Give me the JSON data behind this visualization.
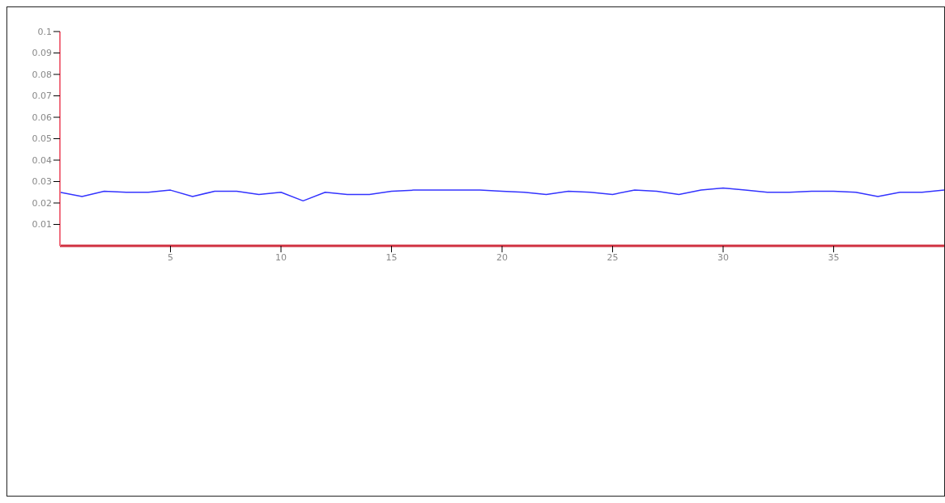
{
  "chart_data": {
    "type": "line",
    "x": [
      0,
      1,
      2,
      3,
      4,
      5,
      6,
      7,
      8,
      9,
      10,
      11,
      12,
      13,
      14,
      15,
      16,
      17,
      18,
      19,
      20,
      21,
      22,
      23,
      24,
      25,
      26,
      27,
      28,
      29,
      30,
      31,
      32,
      33,
      34,
      35,
      36,
      37,
      38,
      39,
      40
    ],
    "values": [
      0.025,
      0.023,
      0.0255,
      0.025,
      0.025,
      0.026,
      0.023,
      0.0255,
      0.0255,
      0.024,
      0.025,
      0.021,
      0.025,
      0.024,
      0.024,
      0.0255,
      0.026,
      0.026,
      0.026,
      0.026,
      0.0255,
      0.025,
      0.024,
      0.0255,
      0.025,
      0.024,
      0.026,
      0.0255,
      0.024,
      0.026,
      0.027,
      0.026,
      0.025,
      0.025,
      0.0255,
      0.0255,
      0.025,
      0.023,
      0.025,
      0.025,
      0.026
    ],
    "color": "#3333ff",
    "xlim": [
      0,
      40
    ],
    "ylim": [
      0,
      0.1
    ],
    "xticks": [
      5,
      10,
      15,
      20,
      25,
      30,
      35
    ],
    "yticks": [
      0.01,
      0.02,
      0.03,
      0.04,
      0.05,
      0.06,
      0.07,
      0.08,
      0.09,
      0.1
    ],
    "grid": false
  }
}
